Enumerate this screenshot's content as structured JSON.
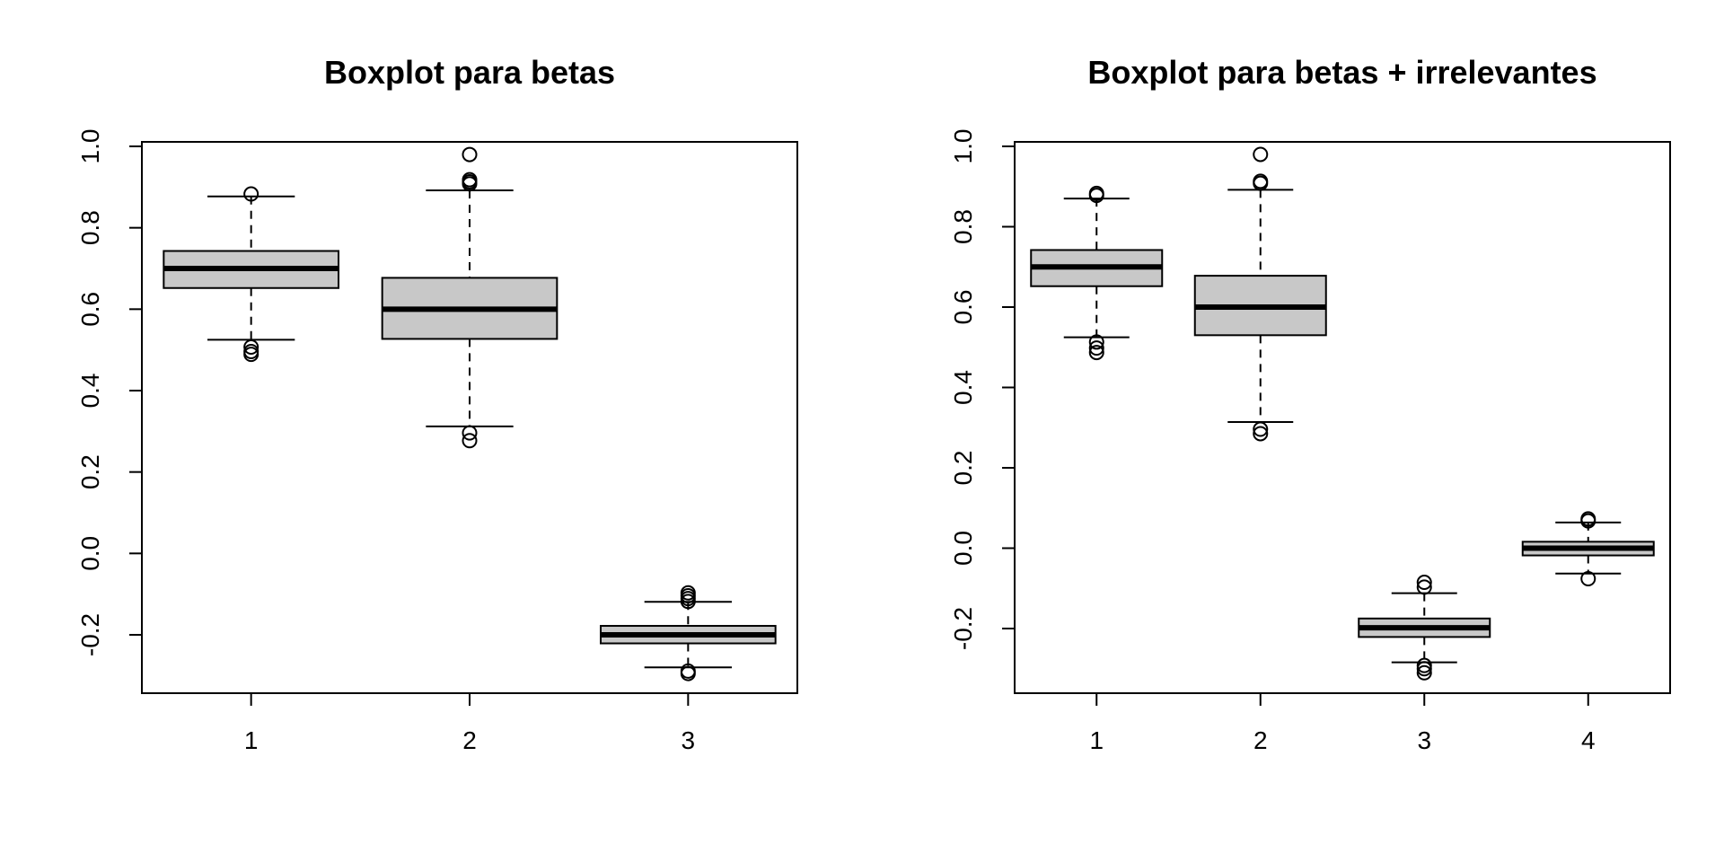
{
  "chart_data": [
    {
      "type": "boxplot",
      "title": "Boxplot para betas",
      "xlabel": "",
      "ylabel": "",
      "ylim": [
        -0.35,
        1.03
      ],
      "y_ticks": [
        -0.2,
        0.0,
        0.2,
        0.4,
        0.6,
        0.8,
        1.0
      ],
      "y_tick_labels": [
        "-0.2",
        "0.0",
        "0.2",
        "0.4",
        "0.6",
        "0.8",
        "1.0"
      ],
      "categories": [
        "1",
        "2",
        "3"
      ],
      "box_fill": "#c8c8c8",
      "boxes": [
        {
          "category": "1",
          "whisker_low": 0.525,
          "q1": 0.652,
          "median": 0.7,
          "q3": 0.743,
          "whisker_high": 0.877,
          "outliers": [
            0.883,
            0.507,
            0.496,
            0.489
          ]
        },
        {
          "category": "2",
          "whisker_low": 0.312,
          "q1": 0.527,
          "median": 0.6,
          "q3": 0.677,
          "whisker_high": 0.892,
          "outliers": [
            0.98,
            0.918,
            0.913,
            0.908,
            0.296,
            0.277
          ]
        },
        {
          "category": "3",
          "whisker_low": -0.28,
          "q1": -0.221,
          "median": -0.2,
          "q3": -0.178,
          "whisker_high": -0.119,
          "outliers": [
            -0.097,
            -0.104,
            -0.111,
            -0.118,
            -0.289,
            -0.295
          ]
        }
      ]
    },
    {
      "type": "boxplot",
      "title": "Boxplot para betas + irrelevantes",
      "xlabel": "",
      "ylabel": "",
      "ylim": [
        -0.36,
        1.03
      ],
      "y_ticks": [
        -0.2,
        0.0,
        0.2,
        0.4,
        0.6,
        0.8,
        1.0
      ],
      "y_tick_labels": [
        "-0.2",
        "0.0",
        "0.2",
        "0.4",
        "0.6",
        "0.8",
        "1.0"
      ],
      "categories": [
        "1",
        "2",
        "3",
        "4"
      ],
      "box_fill": "#c8c8c8",
      "boxes": [
        {
          "category": "1",
          "whisker_low": 0.525,
          "q1": 0.652,
          "median": 0.7,
          "q3": 0.742,
          "whisker_high": 0.87,
          "outliers": [
            0.883,
            0.878,
            0.513,
            0.498,
            0.487
          ]
        },
        {
          "category": "2",
          "whisker_low": 0.314,
          "q1": 0.53,
          "median": 0.6,
          "q3": 0.678,
          "whisker_high": 0.892,
          "outliers": [
            0.98,
            0.913,
            0.908,
            0.296,
            0.285
          ]
        },
        {
          "category": "3",
          "whisker_low": -0.284,
          "q1": -0.221,
          "median": -0.198,
          "q3": -0.175,
          "whisker_high": -0.112,
          "outliers": [
            -0.085,
            -0.097,
            -0.292,
            -0.3,
            -0.31
          ]
        },
        {
          "category": "4",
          "whisker_low": -0.063,
          "q1": -0.018,
          "median": 0.0,
          "q3": 0.016,
          "whisker_high": 0.064,
          "outliers": [
            0.073,
            0.068,
            -0.076
          ]
        }
      ]
    }
  ]
}
